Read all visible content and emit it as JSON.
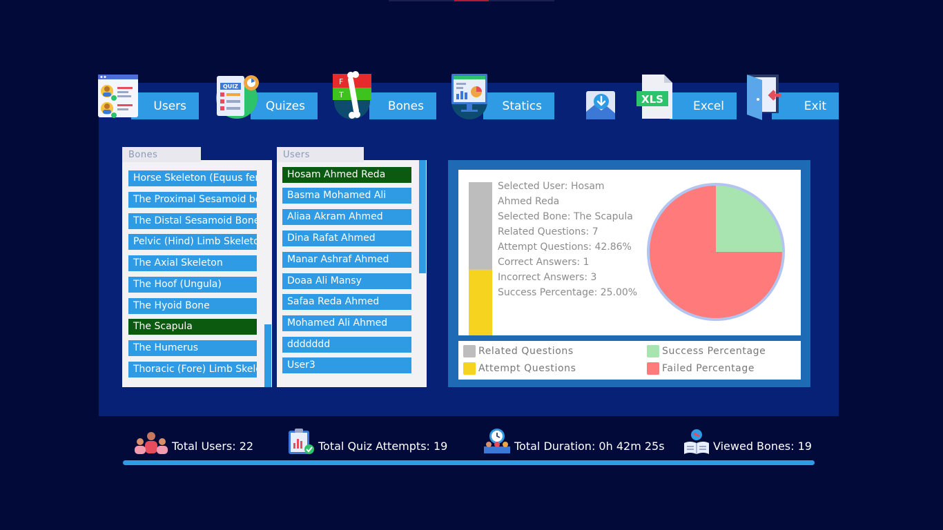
{
  "nav": {
    "users_label": "Users",
    "quizes_label": "Quizes",
    "bones_label": "Bones",
    "statics_label": "Statics",
    "excel_label": "Excel",
    "exit_label": "Exit",
    "quiz_icon_text": "QUIZ",
    "xls_icon_text": "XLS",
    "bones_icon_f": "F",
    "bones_icon_t": "T"
  },
  "bones_list": {
    "title": "Bones",
    "items": [
      "Horse Skeleton (Equus fer",
      "The Proximal Sesamoid bo",
      "The Distal Sesamoid Bone",
      "Pelvic (Hind) Limb Skeleto",
      "The Axial Skeleton",
      "The Hoof (Ungula)",
      "The Hyoid Bone",
      "The Scapula",
      "The Humerus",
      "Thoracic (Fore) Limb Skele"
    ],
    "selected_index": 7
  },
  "users_list": {
    "title": "Users",
    "items": [
      "Hosam Ahmed Reda",
      "Basma Mohamed Ali",
      "Aliaa Akram Ahmed",
      "Dina Rafat Ahmed",
      "Manar Ashraf Ahmed",
      "Doaa Ali Mansy",
      "Safaa Reda Ahmed",
      "Mohamed Ali Ahmed",
      "ddddddd",
      "User3"
    ],
    "selected_index": 0
  },
  "stats": {
    "lines": [
      "Selected User: Hosam",
      "Ahmed Reda",
      "Selected Bone: The Scapula",
      "Related Questions: 7",
      "Attempt Questions: 42.86%",
      "Correct Answers: 1",
      "Incorrect Answers: 3",
      "Success Percentage: 25.00%"
    ]
  },
  "chart_data": [
    {
      "type": "bar",
      "categories": [
        "Related Questions",
        "Attempt Questions"
      ],
      "values": [
        7,
        3
      ],
      "stacked": true,
      "colors": [
        "#bdbdbd",
        "#f5d31f"
      ]
    },
    {
      "type": "pie",
      "labels": [
        "Success Percentage",
        "Failed Percentage"
      ],
      "values": [
        25,
        75
      ],
      "colors": [
        "#a8e4b0",
        "#ff7b7b"
      ]
    }
  ],
  "legend": {
    "related": "Related Questions",
    "attempt": "Attempt Questions",
    "success": "Success Percentage",
    "failed": "Failed Percentage",
    "colors": {
      "related": "#bdbdbd",
      "attempt": "#f5d31f",
      "success": "#a8e4b0",
      "failed": "#ff7b7b"
    }
  },
  "footer": {
    "total_users": "Total Users: 22",
    "total_quiz_attempts": "Total Quiz Attempts: 19",
    "total_duration": "Total Duration: 0h 42m 25s",
    "viewed_bones": "Viewed Bones: 19"
  },
  "colors": {
    "background": "#020a3a",
    "panel": "#062176",
    "accent": "#2e9be4",
    "selected": "#0c5a10"
  }
}
